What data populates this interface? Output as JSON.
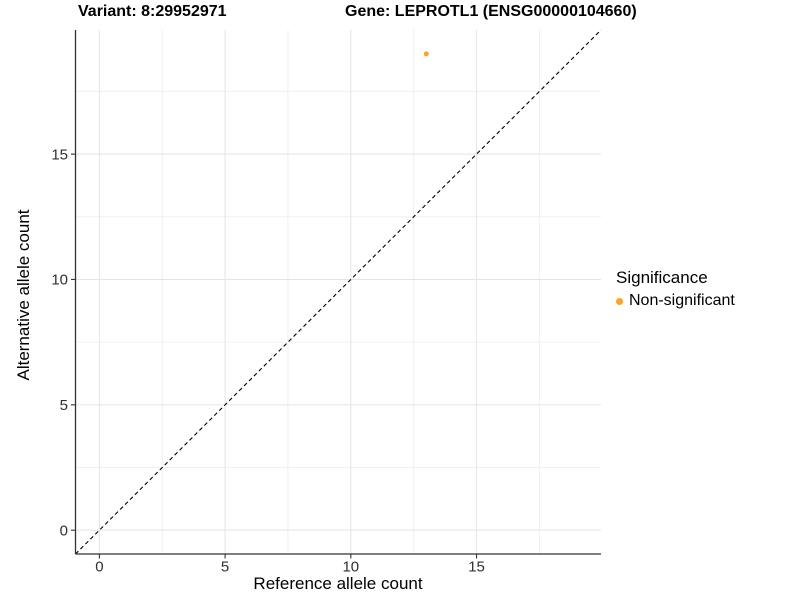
{
  "header": {
    "variant_title": "Variant: 8:29952971",
    "gene_title": "Gene: LEPROTL1 (ENSG00000104660)"
  },
  "legend": {
    "title": "Significance",
    "items": [
      {
        "label": "Non-significant",
        "color": "#FCA32D"
      }
    ]
  },
  "chart_data": {
    "type": "scatter",
    "title": "Variant: 8:29952971 — Gene: LEPROTL1 (ENSG00000104660)",
    "xlabel": "Reference allele count",
    "ylabel": "Alternative allele count",
    "xlim": [
      -0.95,
      19.95
    ],
    "ylim": [
      -0.95,
      19.95
    ],
    "x_ticks": [
      0,
      5,
      10,
      15
    ],
    "y_ticks": [
      0,
      5,
      10,
      15
    ],
    "x_minor_ticks": [
      2.5,
      7.5,
      12.5,
      17.5
    ],
    "y_minor_ticks": [
      2.5,
      7.5,
      12.5,
      17.5
    ],
    "grid": "on",
    "legend_position": "right",
    "series": [
      {
        "name": "Non-significant",
        "color": "#FCA32D",
        "points": [
          {
            "x": 13,
            "y": 19
          }
        ]
      }
    ],
    "reference_line": {
      "kind": "identity y=x",
      "style": "dashed",
      "color": "#000000",
      "from": {
        "x": -0.95,
        "y": -0.95
      },
      "to": {
        "x": 19.95,
        "y": 19.95
      }
    },
    "style_colors": {
      "grid_major": "#E4E4E4",
      "grid_minor": "#F0F0F0",
      "axis_line": "#333333",
      "tick_label": "#303030"
    }
  }
}
